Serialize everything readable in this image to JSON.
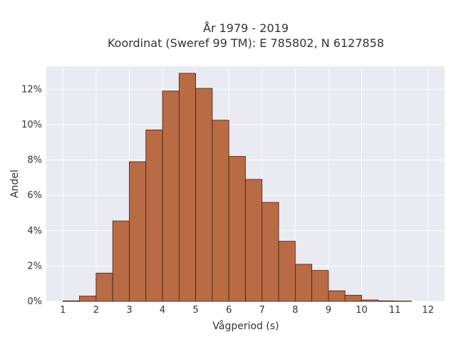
{
  "chart_data": {
    "type": "bar",
    "title": "År 1979 - 2019",
    "subtitle": "Koordinat (Sweref 99 TM): E 785802, N 6127858",
    "xlabel": "Vågperiod (s)",
    "ylabel": "Andel",
    "x_ticks": [
      1,
      2,
      3,
      4,
      5,
      6,
      7,
      8,
      9,
      10,
      11,
      12
    ],
    "xlim": [
      0.5,
      12.5
    ],
    "y_ticks": [
      0,
      2,
      4,
      6,
      8,
      10,
      12
    ],
    "y_tick_labels": [
      "0%",
      "2%",
      "4%",
      "6%",
      "8%",
      "10%",
      "12%"
    ],
    "ylim": [
      0,
      13.3
    ],
    "bin_width": 0.5,
    "bins": [
      {
        "x0": 1.0,
        "value": 0.03
      },
      {
        "x0": 1.5,
        "value": 0.3
      },
      {
        "x0": 2.0,
        "value": 1.6
      },
      {
        "x0": 2.5,
        "value": 4.55
      },
      {
        "x0": 3.0,
        "value": 7.9
      },
      {
        "x0": 3.5,
        "value": 9.7
      },
      {
        "x0": 4.0,
        "value": 11.9
      },
      {
        "x0": 4.5,
        "value": 12.9
      },
      {
        "x0": 5.0,
        "value": 12.05
      },
      {
        "x0": 5.5,
        "value": 10.25
      },
      {
        "x0": 6.0,
        "value": 8.2
      },
      {
        "x0": 6.5,
        "value": 6.9
      },
      {
        "x0": 7.0,
        "value": 5.6
      },
      {
        "x0": 7.5,
        "value": 3.4
      },
      {
        "x0": 8.0,
        "value": 2.1
      },
      {
        "x0": 8.5,
        "value": 1.75
      },
      {
        "x0": 9.0,
        "value": 0.6
      },
      {
        "x0": 9.5,
        "value": 0.35
      },
      {
        "x0": 10.0,
        "value": 0.08
      },
      {
        "x0": 10.5,
        "value": 0.03
      },
      {
        "x0": 11.0,
        "value": 0.02
      }
    ],
    "grid": true,
    "colors": {
      "bar_fill": "#b86b45",
      "bar_stroke": "#3a2418",
      "plot_background": "#e9eaf2",
      "grid": "#ffffff"
    }
  }
}
